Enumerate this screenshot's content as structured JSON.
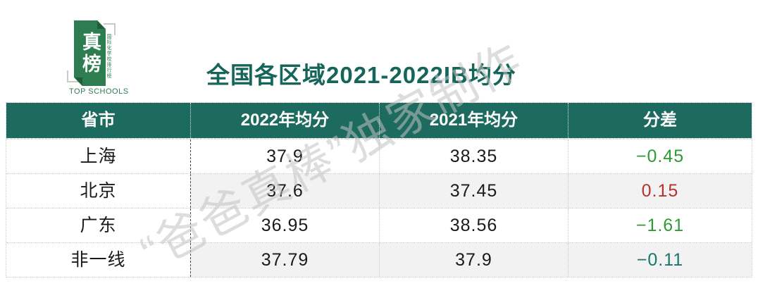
{
  "logo": {
    "main_text": "真榜",
    "side_text": "国际化学校排行榜",
    "sub_text": "TOP SCHOOLS",
    "green": "#2e7d50"
  },
  "title": "全国各区域2021-2022IB均分",
  "watermark": "“爸爸真棒”独家制作",
  "table": {
    "columns": [
      "省市",
      "2022年均分",
      "2021年均分",
      "分差"
    ],
    "rows": [
      {
        "province": "上海",
        "score_2022": "37.9",
        "score_2021": "38.35",
        "diff": "−0.45",
        "diff_color": "#2e9b33"
      },
      {
        "province": "北京",
        "score_2022": "37.6",
        "score_2021": "37.45",
        "diff": "0.15",
        "diff_color": "#b5322d"
      },
      {
        "province": "广东",
        "score_2022": "36.95",
        "score_2021": "38.56",
        "diff": "−1.61",
        "diff_color": "#2e9b33"
      },
      {
        "province": "非一线",
        "score_2022": "37.79",
        "score_2021": "37.9",
        "diff": "−0.11",
        "diff_color": "#1a756d"
      }
    ]
  },
  "colors": {
    "header_bg": "#1d6a5f",
    "title_text": "#15655a",
    "diff_positive_red": "#b5322d",
    "diff_negative_green": "#2e9b33",
    "diff_negative_teal": "#1a756d",
    "alt_row_bg": "#f2f2f2"
  },
  "chart_data": {
    "type": "table",
    "title": "全国各区域2021-2022IB均分",
    "columns": [
      "省市",
      "2022年均分",
      "2021年均分",
      "分差"
    ],
    "rows": [
      [
        "上海",
        37.9,
        38.35,
        -0.45
      ],
      [
        "北京",
        37.6,
        37.45,
        0.15
      ],
      [
        "广东",
        36.95,
        38.56,
        -1.61
      ],
      [
        "非一线",
        37.79,
        37.9,
        -0.11
      ]
    ]
  }
}
